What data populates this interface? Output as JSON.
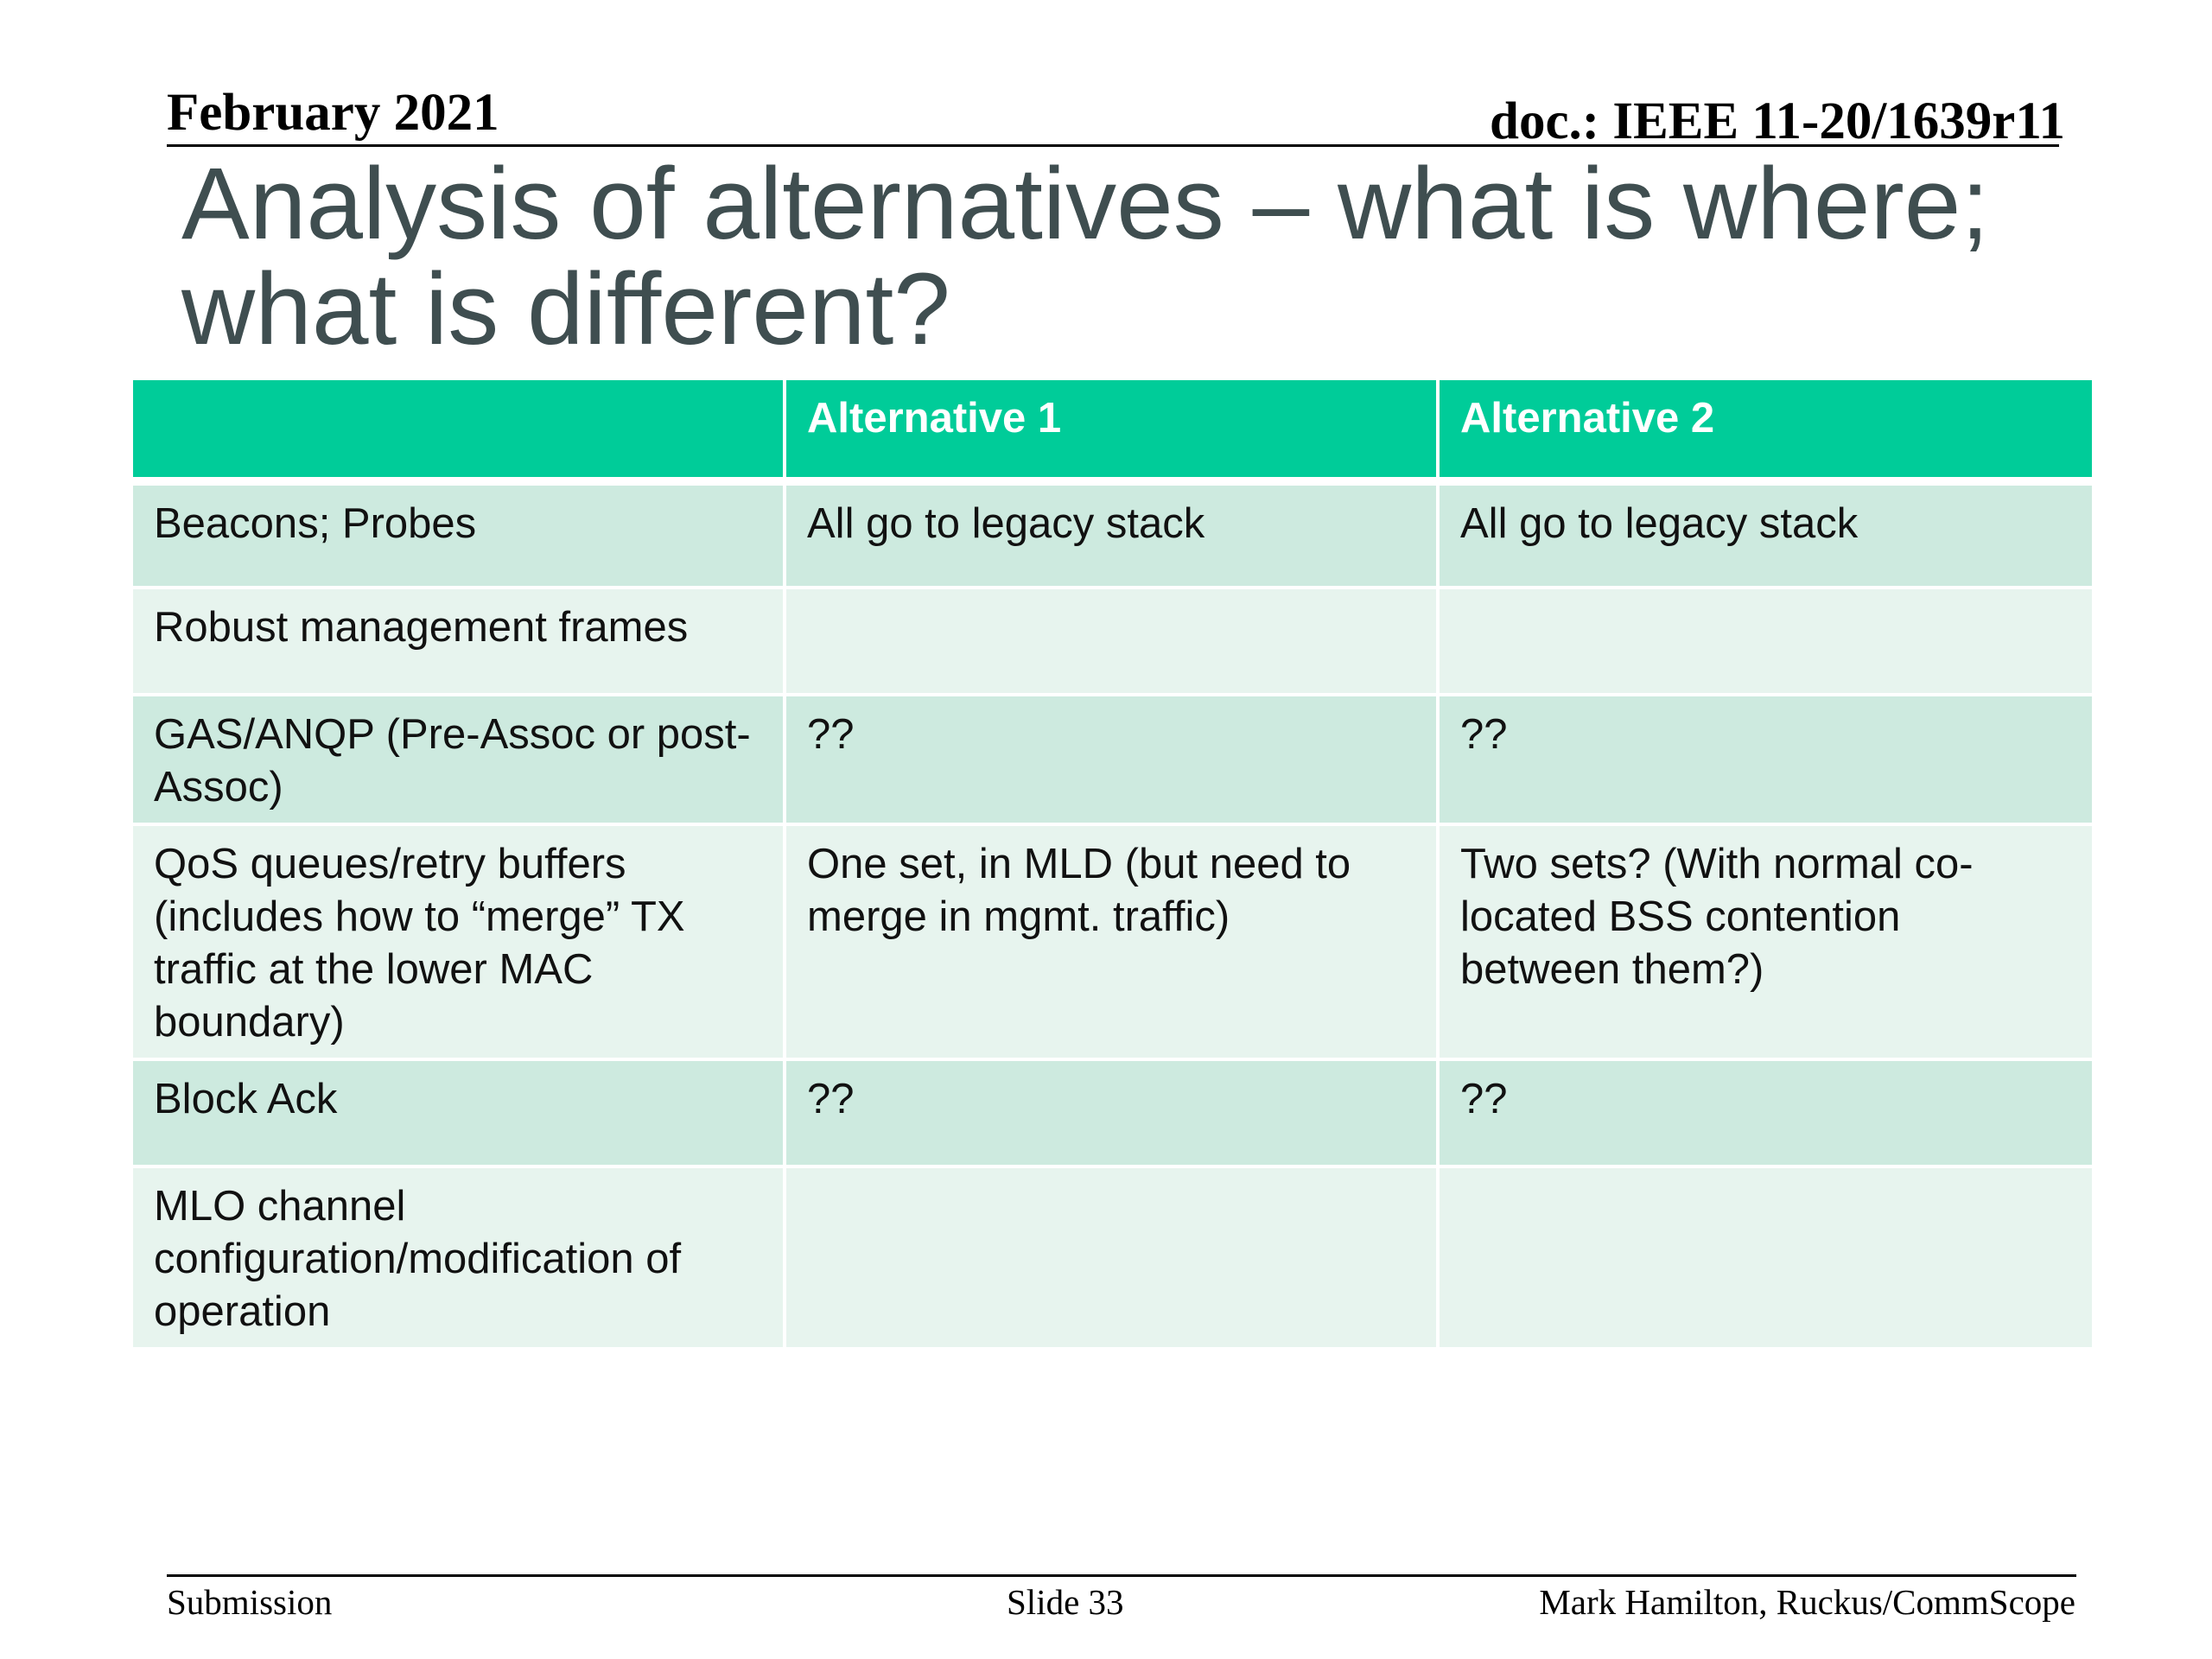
{
  "header": {
    "date": "February 2021",
    "doc": "doc.: IEEE 11-20/1639r11"
  },
  "title": "Analysis of alternatives – what is where; what is different?",
  "table": {
    "headers": [
      "",
      "Alternative 1",
      "Alternative 2"
    ],
    "rows": [
      [
        "Beacons; Probes",
        "All go to legacy stack",
        "All go to legacy stack"
      ],
      [
        "Robust management frames",
        "",
        ""
      ],
      [
        "GAS/ANQP (Pre-Assoc or post-Assoc)",
        "??",
        "??"
      ],
      [
        "QoS queues/retry buffers (includes how to “merge” TX traffic at the lower MAC boundary)",
        "One set, in MLD (but need to merge in mgmt. traffic)",
        "Two sets?  (With normal co-located BSS contention between them?)"
      ],
      [
        "Block Ack",
        "??",
        "??"
      ],
      [
        "MLO channel configuration/modification of operation",
        "",
        ""
      ]
    ]
  },
  "footer": {
    "left": "Submission",
    "center": "Slide 33",
    "right": "Mark Hamilton, Ruckus/CommScope"
  },
  "colors": {
    "header_fill": "#00cc99",
    "row_dark": "#cdeadf",
    "row_light": "#e7f4ee",
    "title_text": "#3f4e50"
  }
}
